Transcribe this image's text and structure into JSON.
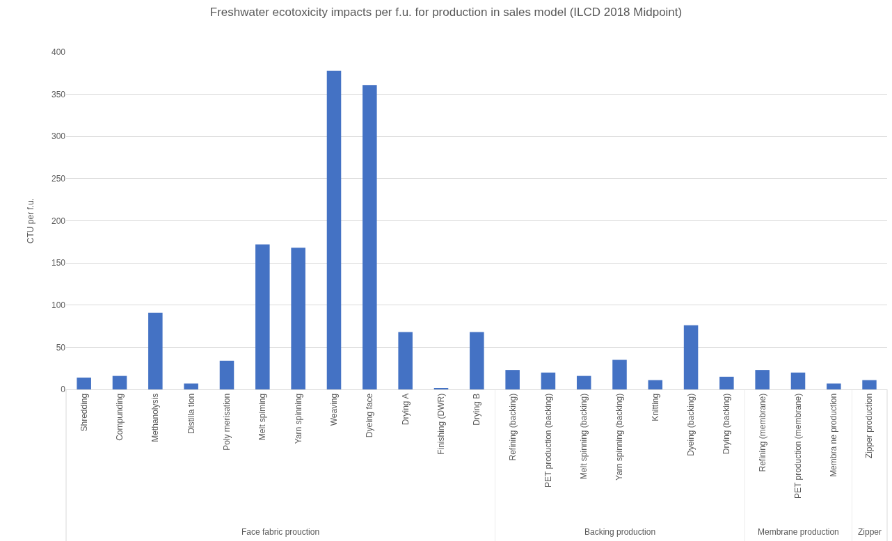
{
  "chart_data": [
    {
      "type": "bar",
      "title": "Freshwater ecotoxicity impacts per f.u. for production in sales model (ILCD 2018 Midpoint)",
      "ylabel": "CTU per f.u.",
      "xlabel": "Face fabric prouction",
      "categories": [
        "Shredding",
        "Compunding",
        "Methanolysis",
        "Distilla tion",
        "Poly merisation",
        "Melt spiming",
        "Yarn spinning",
        "Weaving",
        "Dyeing face",
        "Drying A",
        "Finishing (DWR)",
        "Drying B"
      ],
      "values": [
        14,
        16,
        91,
        7,
        34,
        172,
        168,
        378,
        361,
        68,
        1,
        68
      ],
      "color": "#4472c4",
      "ylim": [
        0,
        400
      ],
      "yticks": [
        0,
        50,
        100,
        150,
        200,
        250,
        300,
        350,
        400
      ],
      "grid": "y"
    },
    {
      "type": "bar",
      "xlabel": "Backing production",
      "categories": [
        "Refining (backing)",
        "PET production (backing)",
        "Melt spinning (backing)",
        "Yarn spinning (backing)",
        "Knitting",
        "Dyeing (backing)",
        "Drying (backing)"
      ],
      "values": [
        23,
        20,
        16,
        35,
        11,
        76,
        15
      ],
      "color": "#4472c4",
      "ylim": [
        0,
        400
      ],
      "yticks": [
        0,
        50,
        100,
        150,
        200,
        250,
        300,
        350,
        400
      ],
      "grid": "y",
      "tick_labels": "x"
    },
    {
      "type": "bar",
      "xlabel": "Membrane production",
      "categories": [
        "Refining (membrane)",
        "PET production (membrane)",
        "Membra ne production"
      ],
      "values": [
        23,
        20,
        7
      ],
      "color": "#4472c4",
      "ylim": [
        0,
        400
      ],
      "yticks": [
        0,
        50,
        100,
        150,
        200,
        250,
        300,
        350,
        400
      ],
      "grid": "y",
      "tick_labels": "x"
    },
    {
      "type": "bar",
      "xlabel": "Zipper",
      "categories": [
        "Zipper production"
      ],
      "values": [
        11
      ],
      "color": "#4472c4",
      "ylim": [
        0,
        400
      ],
      "yticks": [
        0,
        50,
        100,
        150,
        200,
        250,
        300,
        350,
        400
      ],
      "grid": "y",
      "tick_labels": "x"
    }
  ]
}
